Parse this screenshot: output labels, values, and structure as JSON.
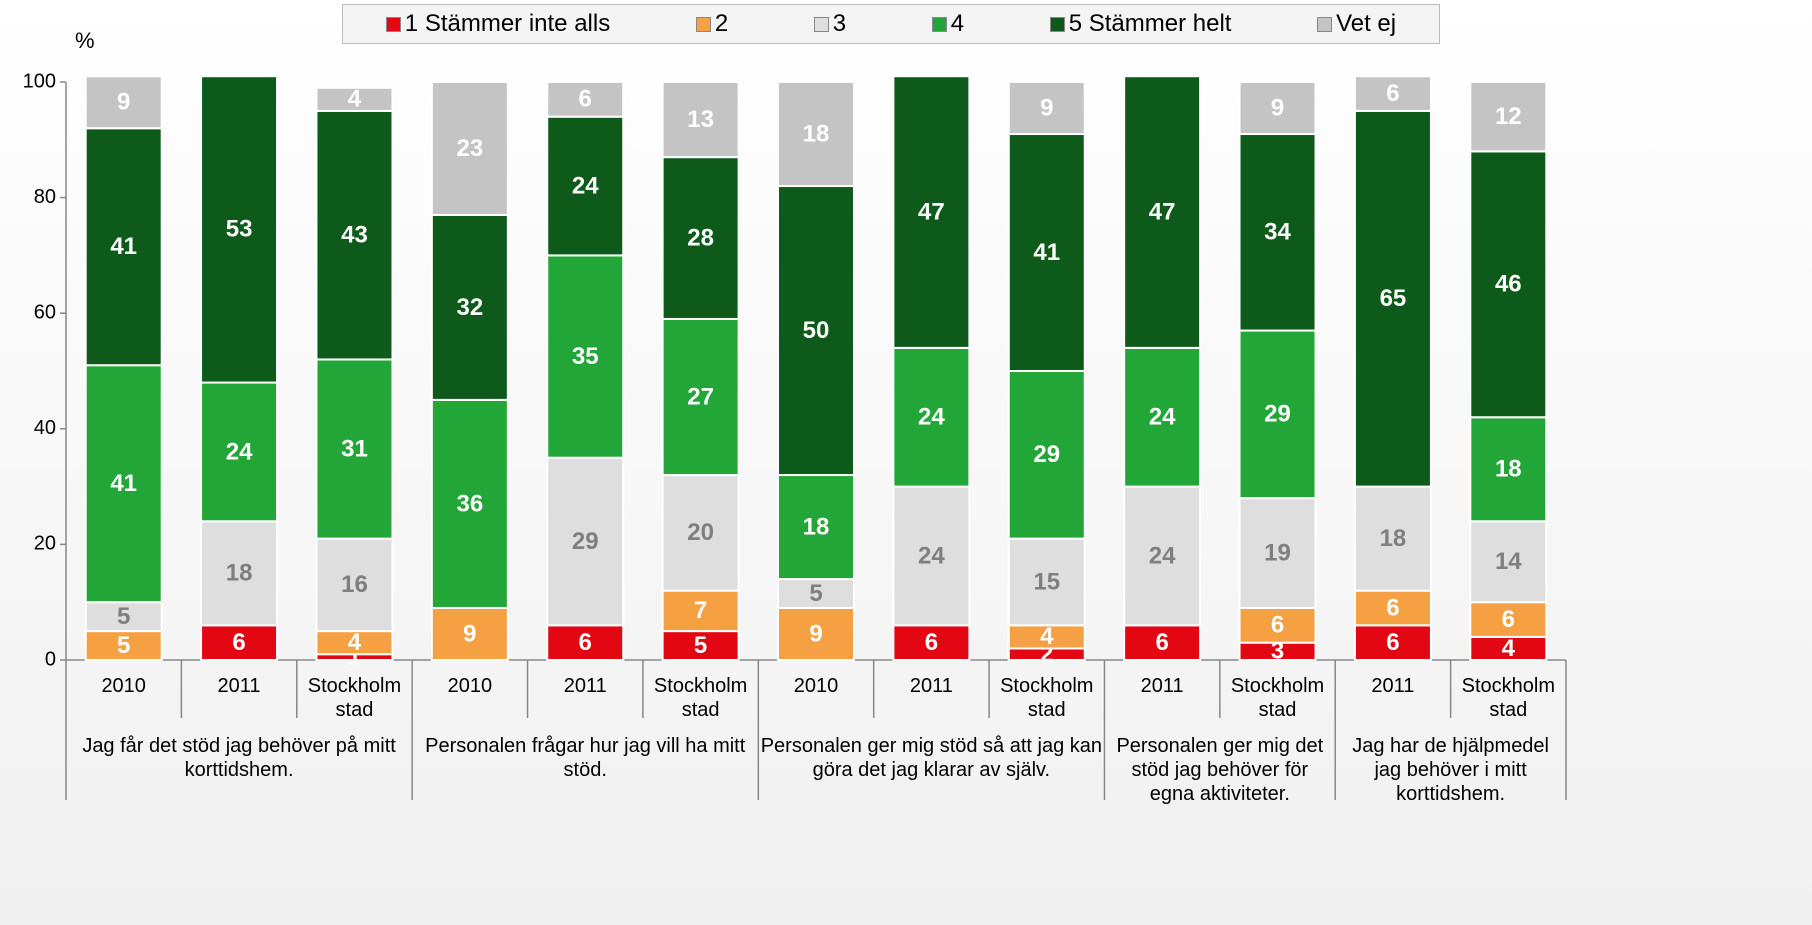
{
  "chart_data": {
    "type": "stacked_bar",
    "y_label": "%",
    "ylim": [
      0,
      100
    ],
    "yticks": [
      0,
      20,
      40,
      60,
      80,
      100
    ],
    "groups": [
      {
        "label": "Jag får det stöd jag behöver på mitt korttidshem.",
        "categories": [
          "2010",
          "2011",
          "Stockholm stad"
        ]
      },
      {
        "label": "Personalen frågar hur jag vill ha mitt stöd.",
        "categories": [
          "2010",
          "2011",
          "Stockholm stad"
        ]
      },
      {
        "label": "Personalen ger mig stöd så att jag kan göra det jag klarar av själv.",
        "categories": [
          "2010",
          "2011",
          "Stockholm stad"
        ]
      },
      {
        "label": "Personalen ger mig det stöd jag behöver för egna aktiviteter.",
        "categories": [
          "2011",
          "Stockholm stad"
        ]
      },
      {
        "label": "Jag har de hjälpmedel jag behöver i mitt korttidshem.",
        "categories": [
          "2011",
          "Stockholm stad"
        ]
      }
    ],
    "series": [
      {
        "name": "1 Stämmer inte alls",
        "color": "#e30613",
        "label_color": "#ffffff",
        "values": [
          null,
          6,
          1,
          null,
          6,
          5,
          null,
          6,
          2,
          6,
          3,
          6,
          4
        ]
      },
      {
        "name": "2",
        "color": "#f4a043",
        "label_color": "#ffffff",
        "values": [
          5,
          null,
          4,
          9,
          null,
          7,
          9,
          null,
          4,
          null,
          6,
          6,
          6
        ]
      },
      {
        "name": "3",
        "color": "#dedede",
        "label_color": "#7f7f7f",
        "values": [
          5,
          18,
          16,
          null,
          29,
          20,
          5,
          24,
          15,
          24,
          19,
          18,
          14
        ]
      },
      {
        "name": "4",
        "color": "#23a638",
        "label_color": "#ffffff",
        "values": [
          41,
          24,
          31,
          36,
          35,
          27,
          18,
          24,
          29,
          24,
          29,
          null,
          18
        ]
      },
      {
        "name": "5 Stämmer helt",
        "color": "#0d5a1b",
        "label_color": "#ffffff",
        "values": [
          41,
          53,
          43,
          32,
          24,
          28,
          50,
          47,
          41,
          47,
          34,
          65,
          46
        ]
      },
      {
        "name": "Vet ej",
        "color": "#c4c4c4",
        "label_color": "#ffffff",
        "values": [
          9,
          null,
          4,
          23,
          6,
          13,
          18,
          null,
          9,
          null,
          9,
          6,
          12
        ]
      }
    ]
  }
}
